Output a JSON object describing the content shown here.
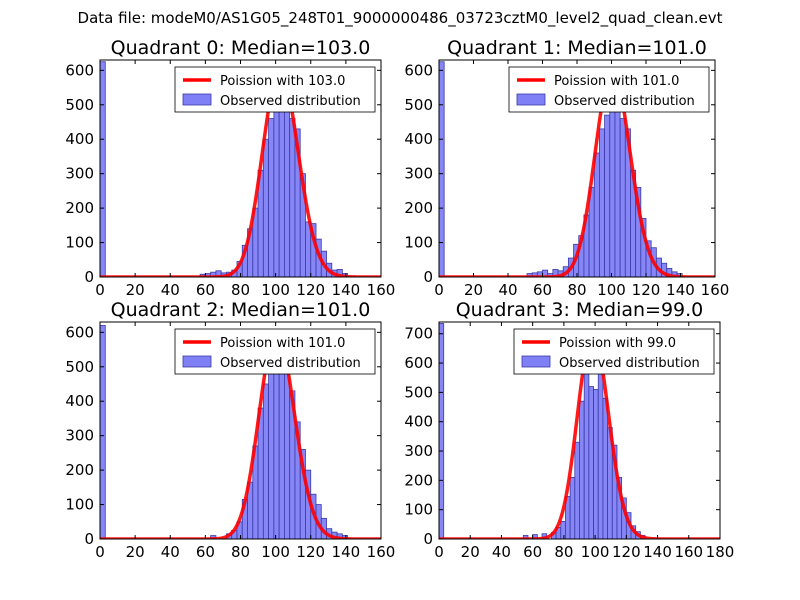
{
  "figure": {
    "title": "Data file: modeM0/AS1G05_248T01_9000000486_03723cztM0_level2_quad_clean.evt"
  },
  "colors": {
    "bar_fill": "#8080f6",
    "bar_edge": "#3a3aa8",
    "curve": "#ff0000",
    "axes": "#000000"
  },
  "chart_data": [
    {
      "type": "bar",
      "title": "Quadrant 0: Median=103.0",
      "xlim": [
        0,
        160
      ],
      "ylim": [
        0,
        630
      ],
      "xticks": [
        0,
        20,
        40,
        60,
        80,
        100,
        120,
        140,
        160
      ],
      "yticks": [
        0,
        100,
        200,
        300,
        400,
        500,
        600
      ],
      "bin_width": 3,
      "bins": [
        {
          "x": 0,
          "value": 625
        },
        {
          "x": 57,
          "value": 8
        },
        {
          "x": 60,
          "value": 10
        },
        {
          "x": 63,
          "value": 14
        },
        {
          "x": 66,
          "value": 18
        },
        {
          "x": 69,
          "value": 12
        },
        {
          "x": 72,
          "value": 14
        },
        {
          "x": 75,
          "value": 20
        },
        {
          "x": 78,
          "value": 45
        },
        {
          "x": 81,
          "value": 92
        },
        {
          "x": 84,
          "value": 140
        },
        {
          "x": 87,
          "value": 200
        },
        {
          "x": 90,
          "value": 310
        },
        {
          "x": 93,
          "value": 400
        },
        {
          "x": 96,
          "value": 460
        },
        {
          "x": 99,
          "value": 505
        },
        {
          "x": 102,
          "value": 520
        },
        {
          "x": 105,
          "value": 540
        },
        {
          "x": 108,
          "value": 460
        },
        {
          "x": 111,
          "value": 430
        },
        {
          "x": 114,
          "value": 300
        },
        {
          "x": 117,
          "value": 160
        },
        {
          "x": 120,
          "value": 155
        },
        {
          "x": 123,
          "value": 110
        },
        {
          "x": 126,
          "value": 75
        },
        {
          "x": 129,
          "value": 40
        },
        {
          "x": 132,
          "value": 20
        },
        {
          "x": 135,
          "value": 22
        },
        {
          "x": 138,
          "value": 10
        }
      ],
      "poisson_mean": 103.0,
      "poisson_peak": 600,
      "legend": {
        "curve_label": "Poission with 103.0",
        "bars_label": "Observed distribution",
        "position": "upper right"
      }
    },
    {
      "type": "bar",
      "title": "Quadrant 1: Median=101.0",
      "xlim": [
        0,
        160
      ],
      "ylim": [
        0,
        630
      ],
      "xticks": [
        0,
        20,
        40,
        60,
        80,
        100,
        120,
        140,
        160
      ],
      "yticks": [
        0,
        100,
        200,
        300,
        400,
        500,
        600
      ],
      "bin_width": 3,
      "bins": [
        {
          "x": 0,
          "value": 625
        },
        {
          "x": 51,
          "value": 10
        },
        {
          "x": 54,
          "value": 12
        },
        {
          "x": 57,
          "value": 15
        },
        {
          "x": 60,
          "value": 20
        },
        {
          "x": 63,
          "value": 10
        },
        {
          "x": 66,
          "value": 22
        },
        {
          "x": 69,
          "value": 18
        },
        {
          "x": 72,
          "value": 30
        },
        {
          "x": 75,
          "value": 55
        },
        {
          "x": 78,
          "value": 95
        },
        {
          "x": 81,
          "value": 120
        },
        {
          "x": 84,
          "value": 180
        },
        {
          "x": 87,
          "value": 260
        },
        {
          "x": 90,
          "value": 360
        },
        {
          "x": 93,
          "value": 430
        },
        {
          "x": 96,
          "value": 470
        },
        {
          "x": 99,
          "value": 540
        },
        {
          "x": 102,
          "value": 580
        },
        {
          "x": 105,
          "value": 460
        },
        {
          "x": 108,
          "value": 430
        },
        {
          "x": 111,
          "value": 310
        },
        {
          "x": 114,
          "value": 260
        },
        {
          "x": 117,
          "value": 170
        },
        {
          "x": 120,
          "value": 105
        },
        {
          "x": 123,
          "value": 85
        },
        {
          "x": 126,
          "value": 55
        },
        {
          "x": 129,
          "value": 40
        },
        {
          "x": 132,
          "value": 25
        },
        {
          "x": 135,
          "value": 15
        },
        {
          "x": 138,
          "value": 10
        }
      ],
      "poisson_mean": 101.0,
      "poisson_peak": 600,
      "legend": {
        "curve_label": "Poission with 101.0",
        "bars_label": "Observed distribution",
        "position": "upper right"
      }
    },
    {
      "type": "bar",
      "title": "Quadrant 2: Median=101.0",
      "xlim": [
        0,
        160
      ],
      "ylim": [
        0,
        630
      ],
      "xticks": [
        0,
        20,
        40,
        60,
        80,
        100,
        120,
        140,
        160
      ],
      "yticks": [
        0,
        100,
        200,
        300,
        400,
        500,
        600
      ],
      "bin_width": 3,
      "bins": [
        {
          "x": 0,
          "value": 620
        },
        {
          "x": 63,
          "value": 10
        },
        {
          "x": 72,
          "value": 15
        },
        {
          "x": 75,
          "value": 25
        },
        {
          "x": 78,
          "value": 50
        },
        {
          "x": 81,
          "value": 115
        },
        {
          "x": 84,
          "value": 165
        },
        {
          "x": 87,
          "value": 270
        },
        {
          "x": 90,
          "value": 380
        },
        {
          "x": 93,
          "value": 450
        },
        {
          "x": 96,
          "value": 490
        },
        {
          "x": 99,
          "value": 540
        },
        {
          "x": 102,
          "value": 570
        },
        {
          "x": 105,
          "value": 560
        },
        {
          "x": 108,
          "value": 430
        },
        {
          "x": 111,
          "value": 340
        },
        {
          "x": 114,
          "value": 260
        },
        {
          "x": 117,
          "value": 200
        },
        {
          "x": 120,
          "value": 130
        },
        {
          "x": 123,
          "value": 100
        },
        {
          "x": 126,
          "value": 60
        },
        {
          "x": 129,
          "value": 30
        },
        {
          "x": 132,
          "value": 20
        },
        {
          "x": 135,
          "value": 15
        },
        {
          "x": 138,
          "value": 10
        }
      ],
      "poisson_mean": 101.0,
      "poisson_peak": 600,
      "legend": {
        "curve_label": "Poission with 101.0",
        "bars_label": "Observed distribution",
        "position": "upper right"
      }
    },
    {
      "type": "bar",
      "title": "Quadrant 3: Median=99.0",
      "xlim": [
        0,
        180
      ],
      "ylim": [
        0,
        740
      ],
      "xticks": [
        0,
        20,
        40,
        60,
        80,
        100,
        120,
        140,
        160,
        180
      ],
      "yticks": [
        0,
        100,
        200,
        300,
        400,
        500,
        600,
        700
      ],
      "bin_width": 3,
      "bins": [
        {
          "x": 0,
          "value": 735
        },
        {
          "x": 54,
          "value": 12
        },
        {
          "x": 60,
          "value": 15
        },
        {
          "x": 66,
          "value": 18
        },
        {
          "x": 72,
          "value": 22
        },
        {
          "x": 75,
          "value": 40
        },
        {
          "x": 78,
          "value": 60
        },
        {
          "x": 81,
          "value": 145
        },
        {
          "x": 84,
          "value": 210
        },
        {
          "x": 87,
          "value": 330
        },
        {
          "x": 90,
          "value": 470
        },
        {
          "x": 93,
          "value": 590
        },
        {
          "x": 96,
          "value": 520
        },
        {
          "x": 99,
          "value": 510
        },
        {
          "x": 102,
          "value": 600
        },
        {
          "x": 105,
          "value": 480
        },
        {
          "x": 108,
          "value": 380
        },
        {
          "x": 111,
          "value": 320
        },
        {
          "x": 114,
          "value": 210
        },
        {
          "x": 117,
          "value": 140
        },
        {
          "x": 120,
          "value": 90
        },
        {
          "x": 123,
          "value": 45
        },
        {
          "x": 126,
          "value": 25
        },
        {
          "x": 129,
          "value": 12
        }
      ],
      "poisson_mean": 99.0,
      "poisson_peak": 700,
      "legend": {
        "curve_label": "Poission with 99.0",
        "bars_label": "Observed distribution",
        "position": "upper right"
      }
    }
  ]
}
